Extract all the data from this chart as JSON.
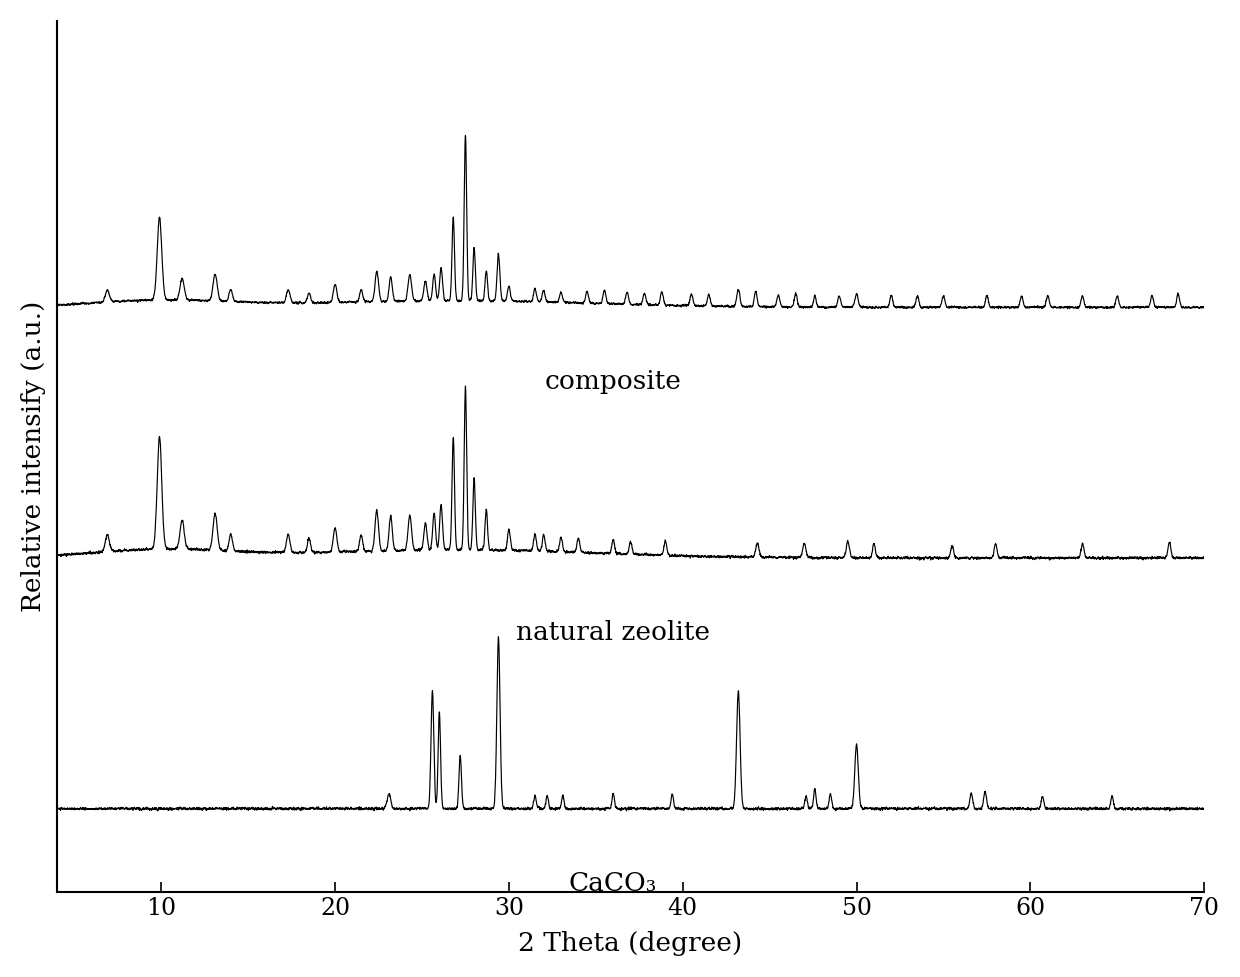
{
  "xlabel": "2 Theta (degree)",
  "ylabel": "Relative intensify (a.u.)",
  "xlim": [
    4,
    70
  ],
  "ylim": [
    -0.35,
    3.3
  ],
  "x_ticks": [
    10,
    20,
    30,
    40,
    50,
    60,
    70
  ],
  "labels": [
    "CaCO₃",
    "natural zeolite",
    "composite"
  ],
  "offsets": [
    0.0,
    1.05,
    2.1
  ],
  "background_color": "#ffffff",
  "line_color": "#000000",
  "label_fontsize": 19,
  "tick_fontsize": 17
}
